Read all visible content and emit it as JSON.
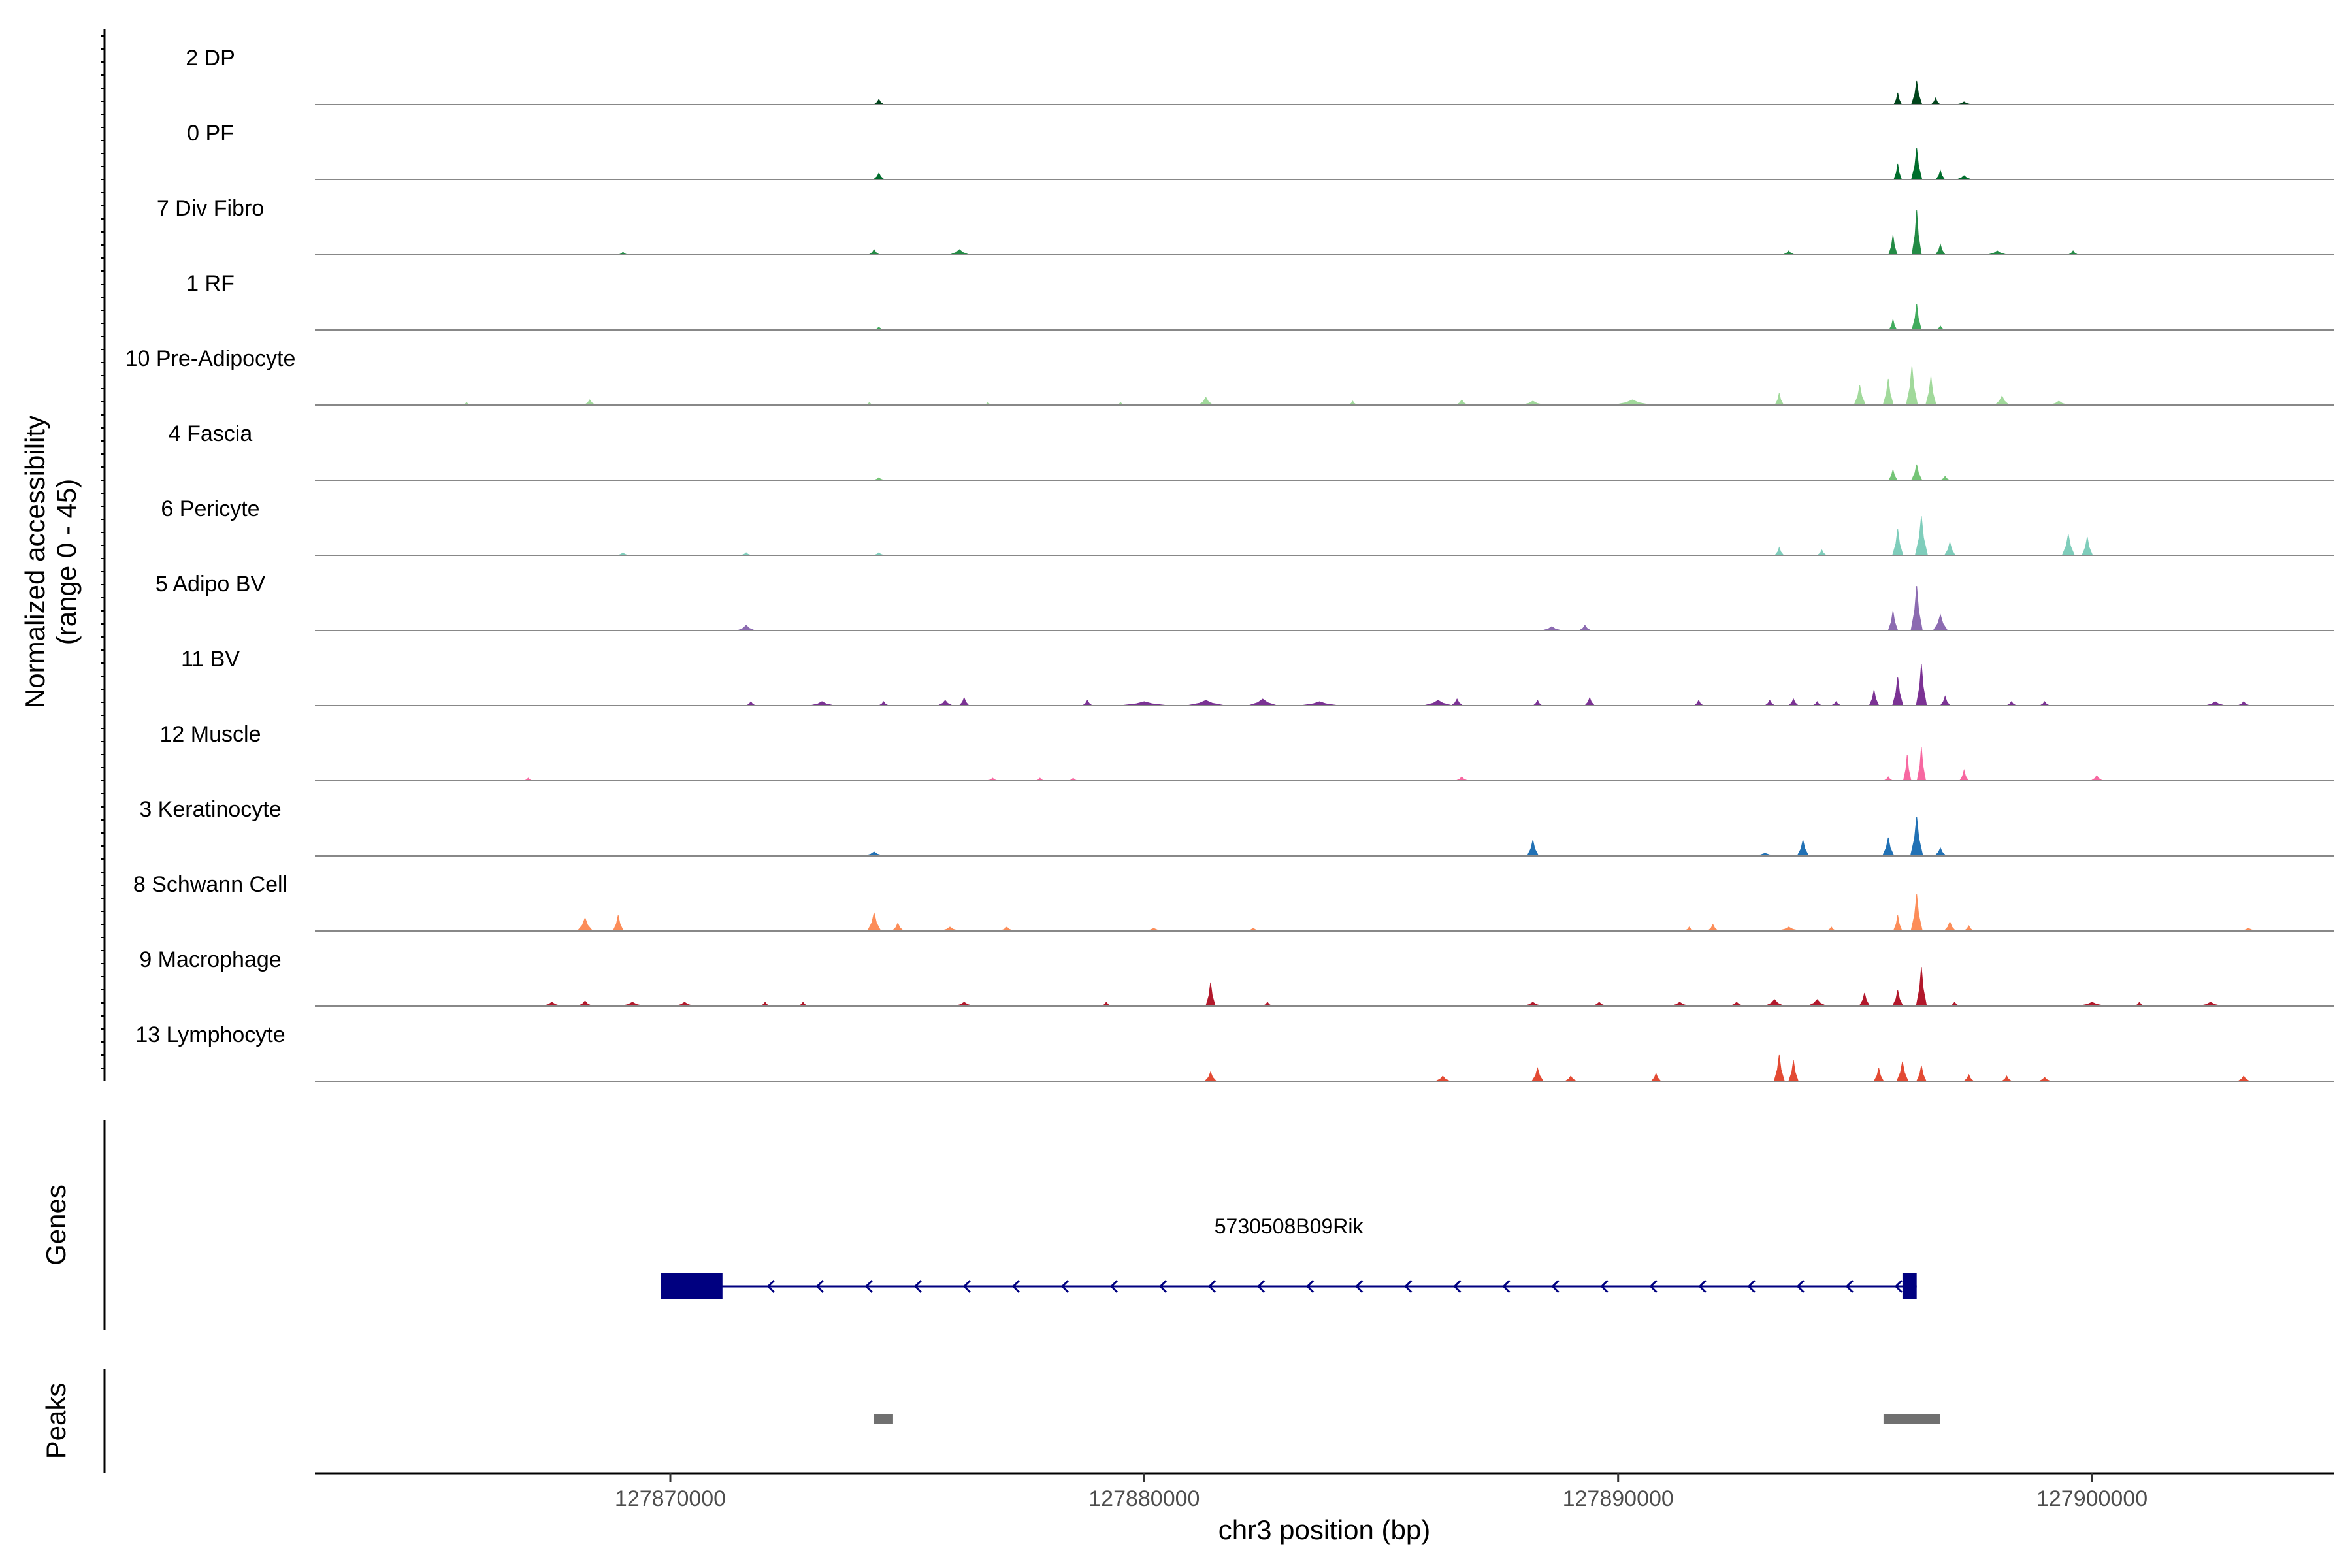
{
  "chart_data": {
    "type": "coverage",
    "xlabel": "chr3 position (bp)",
    "ylabel": [
      "Normalized accessibility",
      "(range 0 - 45)"
    ],
    "ylim": [
      0,
      45
    ],
    "xlim": [
      127862500,
      127905100
    ],
    "xticks": [
      127870000,
      127880000,
      127890000,
      127900000
    ],
    "xtick_labels": [
      "127870000",
      "127880000",
      "127890000",
      "127900000"
    ],
    "tracks": [
      {
        "name": "2 DP",
        "color": "#00441b",
        "peaks": [
          [
            127874400,
            4,
            100
          ],
          [
            127895900,
            9,
            80
          ],
          [
            127896300,
            18,
            110
          ],
          [
            127896700,
            5,
            90
          ],
          [
            127897300,
            2,
            150
          ]
        ]
      },
      {
        "name": "0 PF",
        "color": "#006d2c",
        "peaks": [
          [
            127874400,
            5,
            110
          ],
          [
            127895900,
            12,
            80
          ],
          [
            127896300,
            24,
            110
          ],
          [
            127896800,
            7,
            90
          ],
          [
            127897300,
            3,
            150
          ]
        ]
      },
      {
        "name": "7 Div Fibro",
        "color": "#238b45",
        "peaks": [
          [
            127869000,
            2,
            90
          ],
          [
            127874300,
            4,
            110
          ],
          [
            127876100,
            4,
            200
          ],
          [
            127893600,
            3,
            120
          ],
          [
            127895800,
            15,
            90
          ],
          [
            127896300,
            34,
            100
          ],
          [
            127896800,
            8,
            100
          ],
          [
            127898000,
            3,
            200
          ],
          [
            127899600,
            3,
            100
          ]
        ]
      },
      {
        "name": "1 RF",
        "color": "#41ab5d",
        "peaks": [
          [
            127874400,
            2,
            120
          ],
          [
            127895800,
            8,
            80
          ],
          [
            127896300,
            20,
            100
          ],
          [
            127896800,
            3,
            90
          ]
        ]
      },
      {
        "name": "10 Pre-Adipocyte",
        "color": "#a1d99b",
        "peaks": [
          [
            127865700,
            2,
            80
          ],
          [
            127868300,
            4,
            120
          ],
          [
            127874200,
            2,
            80
          ],
          [
            127876700,
            2,
            80
          ],
          [
            127879500,
            2,
            80
          ],
          [
            127881300,
            6,
            150
          ],
          [
            127884400,
            3,
            90
          ],
          [
            127886700,
            4,
            120
          ],
          [
            127888200,
            3,
            250
          ],
          [
            127890300,
            4,
            400
          ],
          [
            127893400,
            9,
            90
          ],
          [
            127895100,
            15,
            120
          ],
          [
            127895700,
            20,
            110
          ],
          [
            127896200,
            30,
            120
          ],
          [
            127896600,
            22,
            110
          ],
          [
            127898100,
            7,
            150
          ],
          [
            127899300,
            3,
            200
          ]
        ]
      },
      {
        "name": "4 Fascia",
        "color": "#74c476",
        "peaks": [
          [
            127874400,
            2,
            100
          ],
          [
            127895800,
            8,
            90
          ],
          [
            127896300,
            12,
            110
          ],
          [
            127896900,
            3,
            90
          ]
        ]
      },
      {
        "name": "6 Pericyte",
        "color": "#7fcdbb",
        "peaks": [
          [
            127869000,
            2,
            100
          ],
          [
            127871600,
            2,
            100
          ],
          [
            127874400,
            2,
            100
          ],
          [
            127893400,
            6,
            90
          ],
          [
            127894300,
            4,
            90
          ],
          [
            127895900,
            20,
            110
          ],
          [
            127896400,
            30,
            130
          ],
          [
            127897000,
            10,
            110
          ],
          [
            127899500,
            16,
            130
          ],
          [
            127899900,
            14,
            110
          ]
        ]
      },
      {
        "name": "5 Adipo BV",
        "color": "#8c6bb1",
        "peaks": [
          [
            127871600,
            4,
            180
          ],
          [
            127888600,
            3,
            200
          ],
          [
            127889300,
            4,
            120
          ],
          [
            127895800,
            15,
            100
          ],
          [
            127896300,
            34,
            120
          ],
          [
            127896800,
            12,
            150
          ]
        ]
      },
      {
        "name": "11 BV",
        "color": "#7b3294",
        "peaks": [
          [
            127871700,
            3,
            90
          ],
          [
            127873200,
            3,
            250
          ],
          [
            127874500,
            3,
            100
          ],
          [
            127875800,
            4,
            150
          ],
          [
            127876200,
            6,
            100
          ],
          [
            127878800,
            4,
            100
          ],
          [
            127880000,
            3,
            500
          ],
          [
            127881300,
            4,
            400
          ],
          [
            127882500,
            5,
            300
          ],
          [
            127883700,
            3,
            400
          ],
          [
            127886200,
            4,
            300
          ],
          [
            127886600,
            5,
            120
          ],
          [
            127888300,
            4,
            90
          ],
          [
            127889400,
            6,
            100
          ],
          [
            127891700,
            4,
            90
          ],
          [
            127893200,
            4,
            100
          ],
          [
            127893700,
            5,
            100
          ],
          [
            127894200,
            3,
            90
          ],
          [
            127894600,
            3,
            100
          ],
          [
            127895400,
            12,
            100
          ],
          [
            127895900,
            22,
            110
          ],
          [
            127896400,
            32,
            110
          ],
          [
            127896900,
            7,
            100
          ],
          [
            127898300,
            3,
            100
          ],
          [
            127899000,
            3,
            100
          ],
          [
            127902600,
            3,
            200
          ],
          [
            127903200,
            3,
            120
          ]
        ]
      },
      {
        "name": "12 Muscle",
        "color": "#f768a1",
        "peaks": [
          [
            127867000,
            2,
            80
          ],
          [
            127876800,
            2,
            100
          ],
          [
            127877800,
            2,
            80
          ],
          [
            127878500,
            2,
            80
          ],
          [
            127886700,
            3,
            120
          ],
          [
            127895700,
            3,
            90
          ],
          [
            127896100,
            20,
            80
          ],
          [
            127896400,
            26,
            90
          ],
          [
            127897300,
            8,
            90
          ],
          [
            127900100,
            4,
            120
          ]
        ]
      },
      {
        "name": "3 Keratinocyte",
        "color": "#2171b5",
        "peaks": [
          [
            127874300,
            3,
            200
          ],
          [
            127888200,
            12,
            120
          ],
          [
            127893100,
            2,
            250
          ],
          [
            127893900,
            12,
            120
          ],
          [
            127895700,
            14,
            120
          ],
          [
            127896300,
            30,
            130
          ],
          [
            127896800,
            6,
            120
          ]
        ]
      },
      {
        "name": "8 Schwann Cell",
        "color": "#fc8d59",
        "peaks": [
          [
            127868200,
            10,
            160
          ],
          [
            127868900,
            12,
            110
          ],
          [
            127874300,
            14,
            140
          ],
          [
            127874800,
            6,
            120
          ],
          [
            127875900,
            3,
            200
          ],
          [
            127877100,
            3,
            150
          ],
          [
            127880200,
            2,
            200
          ],
          [
            127882300,
            2,
            150
          ],
          [
            127891500,
            3,
            100
          ],
          [
            127892000,
            5,
            110
          ],
          [
            127893600,
            3,
            250
          ],
          [
            127894500,
            3,
            100
          ],
          [
            127895900,
            12,
            90
          ],
          [
            127896300,
            28,
            120
          ],
          [
            127897000,
            7,
            120
          ],
          [
            127897400,
            4,
            100
          ],
          [
            127903300,
            2,
            200
          ]
        ]
      },
      {
        "name": "9 Macrophage",
        "color": "#b2182b",
        "peaks": [
          [
            127867500,
            3,
            200
          ],
          [
            127868200,
            4,
            150
          ],
          [
            127869200,
            3,
            250
          ],
          [
            127870300,
            3,
            200
          ],
          [
            127872000,
            3,
            100
          ],
          [
            127872800,
            3,
            100
          ],
          [
            127876200,
            3,
            200
          ],
          [
            127879200,
            3,
            100
          ],
          [
            127881400,
            18,
            100
          ],
          [
            127882600,
            3,
            100
          ],
          [
            127888200,
            3,
            200
          ],
          [
            127889600,
            3,
            150
          ],
          [
            127891300,
            3,
            200
          ],
          [
            127892500,
            3,
            150
          ],
          [
            127893300,
            5,
            200
          ],
          [
            127894200,
            5,
            200
          ],
          [
            127895200,
            10,
            110
          ],
          [
            127895900,
            12,
            110
          ],
          [
            127896400,
            30,
            110
          ],
          [
            127897100,
            3,
            100
          ],
          [
            127900000,
            3,
            300
          ],
          [
            127901000,
            3,
            100
          ],
          [
            127902500,
            3,
            250
          ]
        ]
      },
      {
        "name": "13 Lymphocyte",
        "color": "#e34a33",
        "peaks": [
          [
            127881400,
            7,
            120
          ],
          [
            127886300,
            4,
            150
          ],
          [
            127888300,
            10,
            120
          ],
          [
            127889000,
            4,
            120
          ],
          [
            127890800,
            6,
            100
          ],
          [
            127893400,
            20,
            110
          ],
          [
            127893700,
            16,
            100
          ],
          [
            127895500,
            10,
            100
          ],
          [
            127896000,
            15,
            120
          ],
          [
            127896400,
            12,
            100
          ],
          [
            127897400,
            5,
            100
          ],
          [
            127898200,
            4,
            100
          ],
          [
            127899000,
            3,
            120
          ],
          [
            127903200,
            4,
            120
          ]
        ]
      }
    ],
    "genes_label": "Genes",
    "gene": {
      "name": "5730508B09Rik",
      "color": "#000080",
      "start": 127869800,
      "end": 127896300,
      "strand": "-",
      "exons": [
        [
          127869800,
          127871100
        ],
        [
          127896000,
          127896300
        ]
      ]
    },
    "peaks_label": "Peaks",
    "peak_regions": [
      [
        127874300,
        127874700
      ],
      [
        127895600,
        127896800
      ]
    ],
    "peak_color": "#707070"
  }
}
